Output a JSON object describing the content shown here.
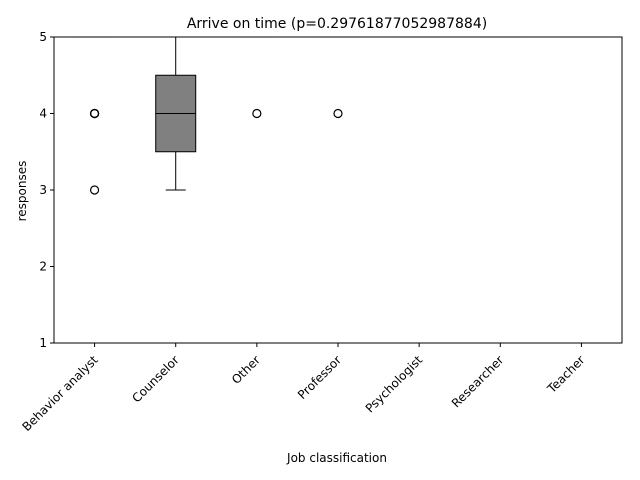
{
  "chart_data": {
    "type": "boxplot",
    "title": "Arrive on time (p=0.29761877052987884)",
    "xlabel": "Job classification",
    "ylabel": "responses",
    "ylim": [
      1,
      5
    ],
    "yticks": [
      1,
      2,
      3,
      4,
      5
    ],
    "grid": false,
    "legend": "none",
    "box_color": "#808080",
    "categories": [
      "Behavior analyst",
      "Counselor",
      "Other",
      "Professor",
      "Psychologist",
      "Researcher",
      "Teacher"
    ],
    "boxes": [
      {
        "category": "Behavior analyst",
        "q1": 5,
        "median": 5,
        "q3": 5,
        "whisker_low": 5,
        "whisker_high": 5,
        "outliers": [
          4,
          4,
          4,
          3
        ]
      },
      {
        "category": "Counselor",
        "q1": 3.5,
        "median": 4,
        "q3": 4.5,
        "whisker_low": 3,
        "whisker_high": 5,
        "outliers": []
      },
      {
        "category": "Other",
        "q1": 5,
        "median": 5,
        "q3": 5,
        "whisker_low": 5,
        "whisker_high": 5,
        "outliers": [
          4
        ]
      },
      {
        "category": "Professor",
        "q1": 5,
        "median": 5,
        "q3": 5,
        "whisker_low": 5,
        "whisker_high": 5,
        "outliers": [
          4
        ]
      },
      {
        "category": "Psychologist",
        "q1": 5,
        "median": 5,
        "q3": 5,
        "whisker_low": 5,
        "whisker_high": 5,
        "outliers": []
      },
      {
        "category": "Researcher",
        "q1": 5,
        "median": 5,
        "q3": 5,
        "whisker_low": 5,
        "whisker_high": 5,
        "outliers": []
      },
      {
        "category": "Teacher",
        "q1": 5,
        "median": 5,
        "q3": 5,
        "whisker_low": 5,
        "whisker_high": 5,
        "outliers": []
      }
    ]
  }
}
